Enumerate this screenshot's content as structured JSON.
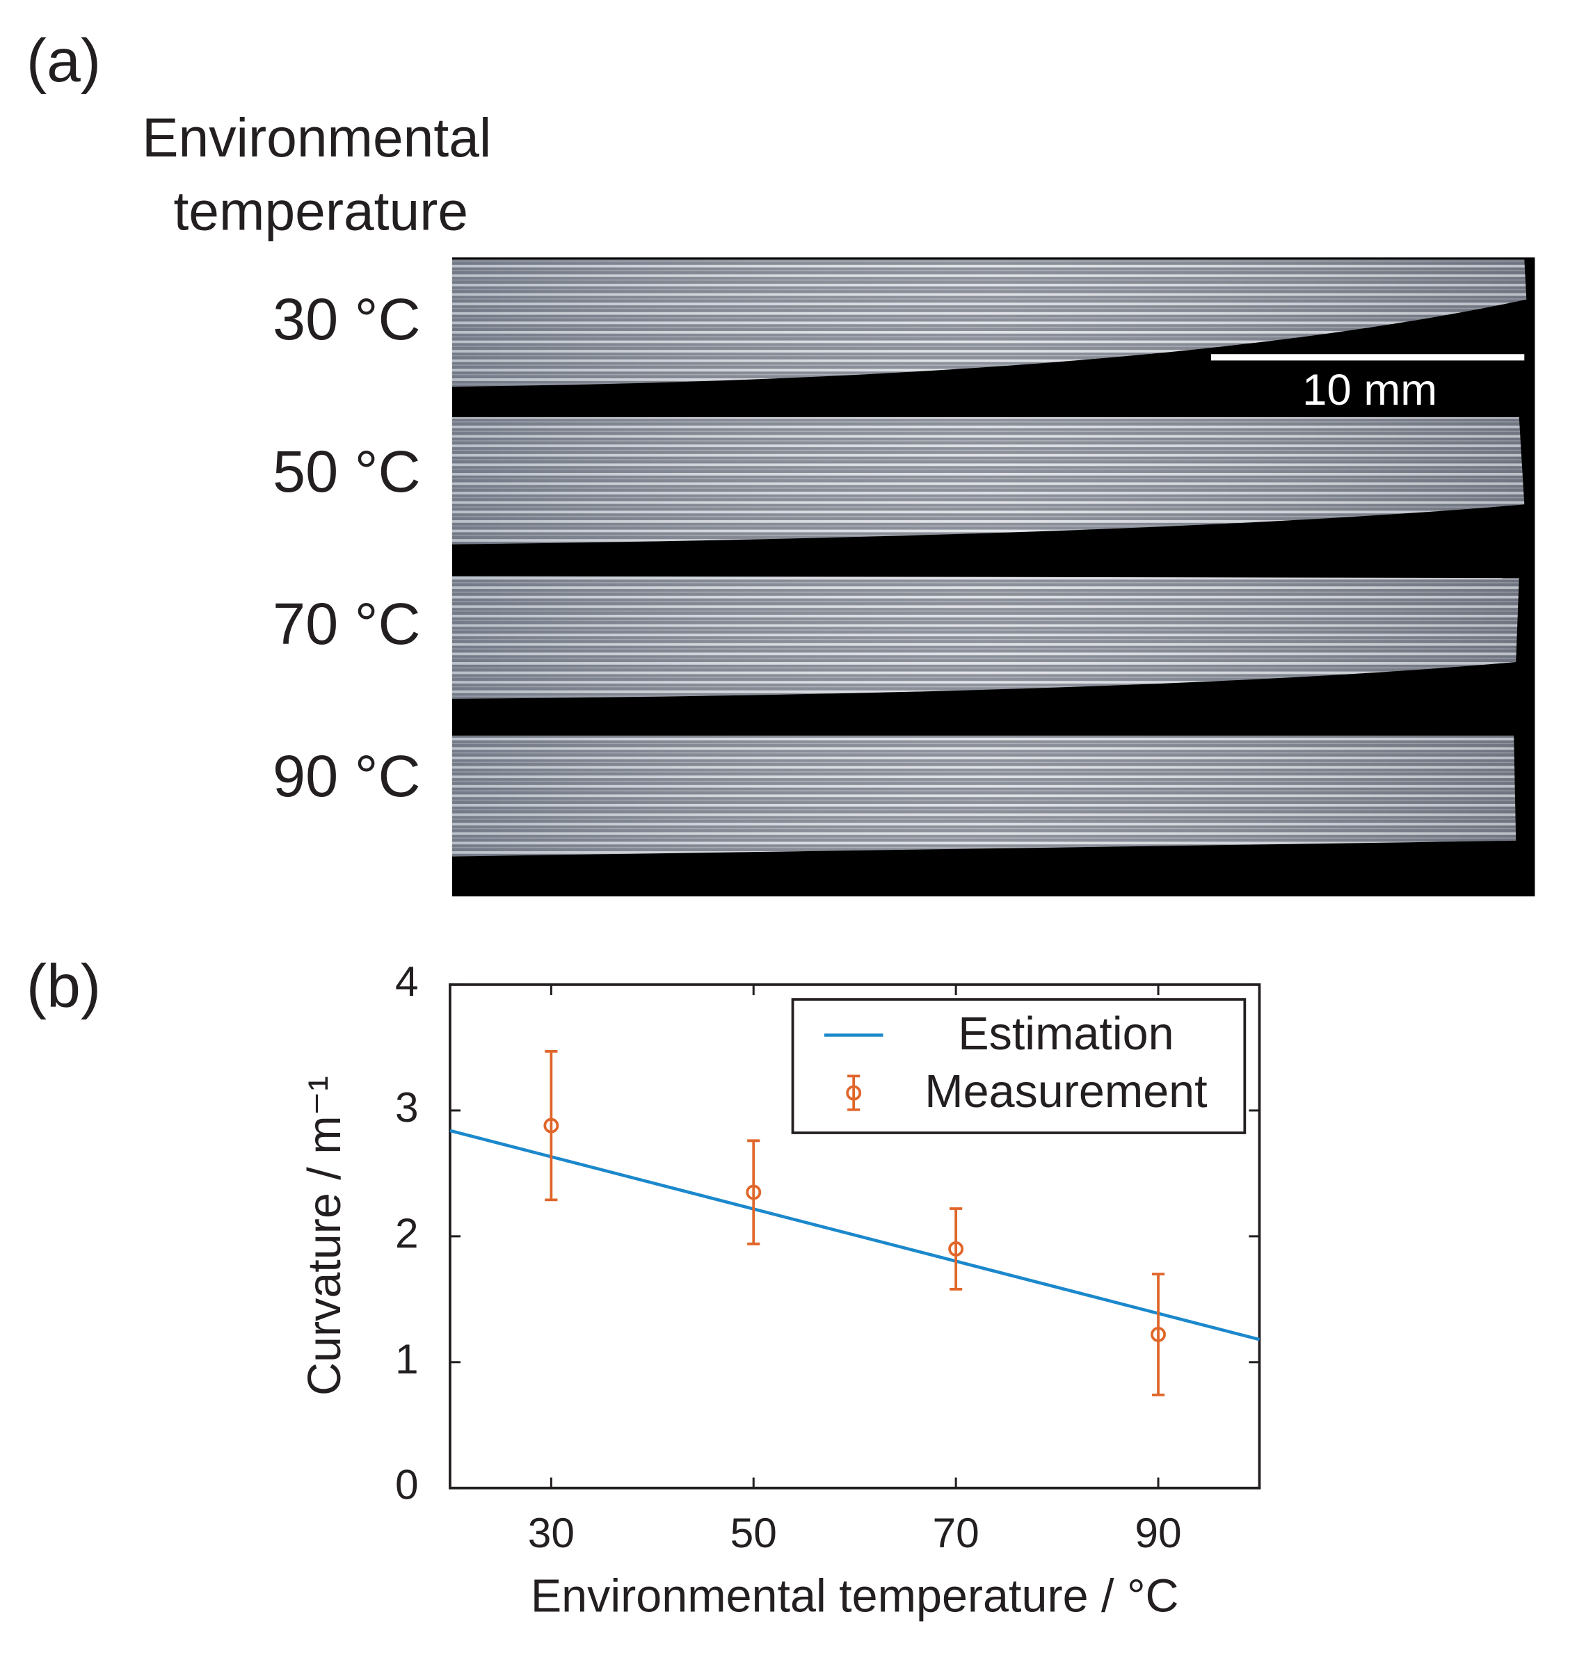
{
  "panel_a": {
    "label": "(a)",
    "row_header": [
      "Environmental",
      "temperature"
    ],
    "rows": [
      "30 °C",
      "50 °C",
      "70 °C",
      "90 °C"
    ],
    "scale_bar": "10 mm"
  },
  "panel_b": {
    "label": "(b)"
  },
  "chart_data": {
    "type": "line",
    "x_label": "Environmental temperature / °C",
    "y_label": "Curvature / m⁻¹",
    "xlim": [
      20,
      100
    ],
    "ylim": [
      0,
      4
    ],
    "xticks": [
      30,
      50,
      70,
      90
    ],
    "yticks": [
      0,
      1,
      2,
      3,
      4
    ],
    "legend": "upper right",
    "series": [
      {
        "name": "Estimation",
        "type": "line",
        "color": "#1b88cc",
        "x": [
          20,
          100
        ],
        "values": [
          2.84,
          1.18
        ]
      },
      {
        "name": "Measurement",
        "type": "errorbar",
        "color": "#e0662a",
        "x": [
          30,
          50,
          70,
          90
        ],
        "values": [
          2.88,
          2.35,
          1.9,
          1.22
        ],
        "errors": [
          0.59,
          0.41,
          0.32,
          0.48
        ]
      }
    ]
  }
}
